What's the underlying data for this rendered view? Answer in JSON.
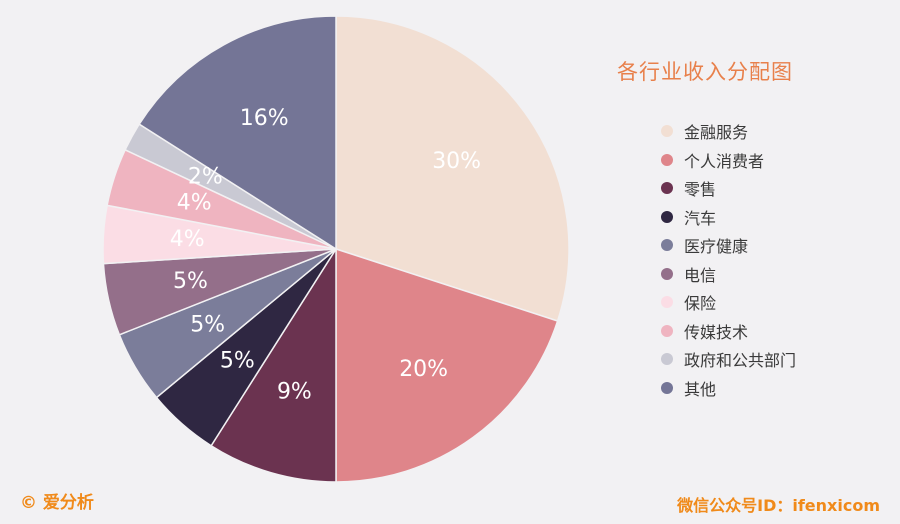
{
  "chart_data": {
    "type": "pie",
    "title": "各行业收入分配图",
    "categories": [
      "金融服务",
      "个人消费者",
      "零售",
      "汽车",
      "医疗健康",
      "电信",
      "保险",
      "传媒技术",
      "政府和公共部门",
      "其他"
    ],
    "values": [
      30,
      20,
      9,
      5,
      5,
      5,
      4,
      4,
      2,
      16
    ],
    "labels": [
      "30%",
      "20%",
      "9%",
      "5%",
      "5%",
      "5%",
      "4%",
      "4%",
      "2%",
      "16%"
    ],
    "colors": [
      "#f2dfd3",
      "#df858a",
      "#6b3350",
      "#2f2742",
      "#7b7d9a",
      "#946f8a",
      "#fbdde5",
      "#efb4c0",
      "#c9c9d3",
      "#747596"
    ],
    "legend_position": "right"
  },
  "footer": {
    "copyright": "© 爱分析",
    "wechat": "微信公众号ID：ifenxicom"
  }
}
